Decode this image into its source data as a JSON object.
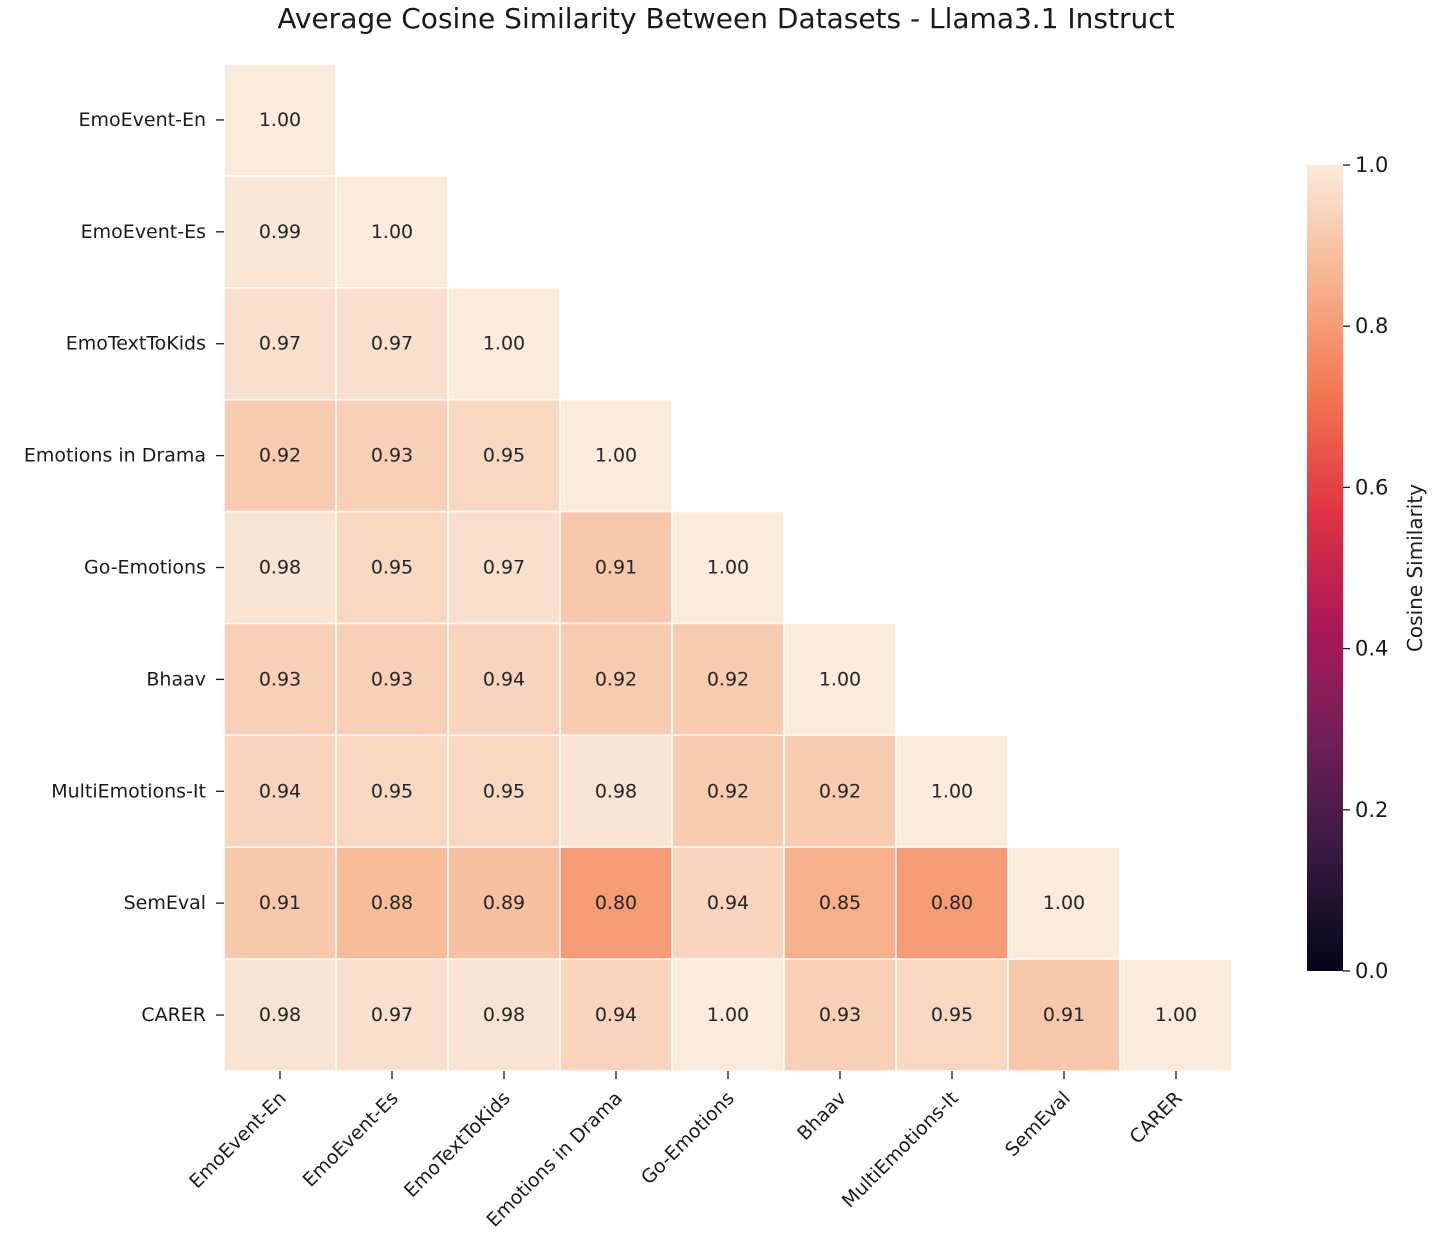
{
  "chart_data": {
    "type": "heatmap",
    "title": "Average Cosine Similarity Between Datasets - Llama3.1 Instruct",
    "labels": [
      "EmoEvent-En",
      "EmoEvent-Es",
      "EmoTextToKids",
      "Emotions in Drama",
      "Go-Emotions",
      "Bhaav",
      "MultiEmotions-It",
      "SemEval",
      "CARER"
    ],
    "matrix_lower": [
      [
        1.0
      ],
      [
        0.99,
        1.0
      ],
      [
        0.97,
        0.97,
        1.0
      ],
      [
        0.92,
        0.93,
        0.95,
        1.0
      ],
      [
        0.98,
        0.95,
        0.97,
        0.91,
        1.0
      ],
      [
        0.93,
        0.93,
        0.94,
        0.92,
        0.92,
        1.0
      ],
      [
        0.94,
        0.95,
        0.95,
        0.98,
        0.92,
        0.92,
        1.0
      ],
      [
        0.91,
        0.88,
        0.89,
        0.8,
        0.94,
        0.85,
        0.8,
        1.0
      ],
      [
        0.98,
        0.97,
        0.98,
        0.94,
        1.0,
        0.93,
        0.95,
        0.91,
        1.0
      ]
    ],
    "value_format": "2 decimals",
    "mask": "upper triangle hidden",
    "colorbar": {
      "label": "Cosine Similarity",
      "range": [
        0.0,
        1.0
      ],
      "ticks": [
        "0.0",
        "0.2",
        "0.4",
        "0.6",
        "0.8",
        "1.0"
      ],
      "colormap": "rocket"
    },
    "colormap_stops": [
      "#03051a",
      "#35193e",
      "#701f57",
      "#ad1759",
      "#e13342",
      "#f37651",
      "#f6b48f",
      "#faebdd"
    ]
  }
}
